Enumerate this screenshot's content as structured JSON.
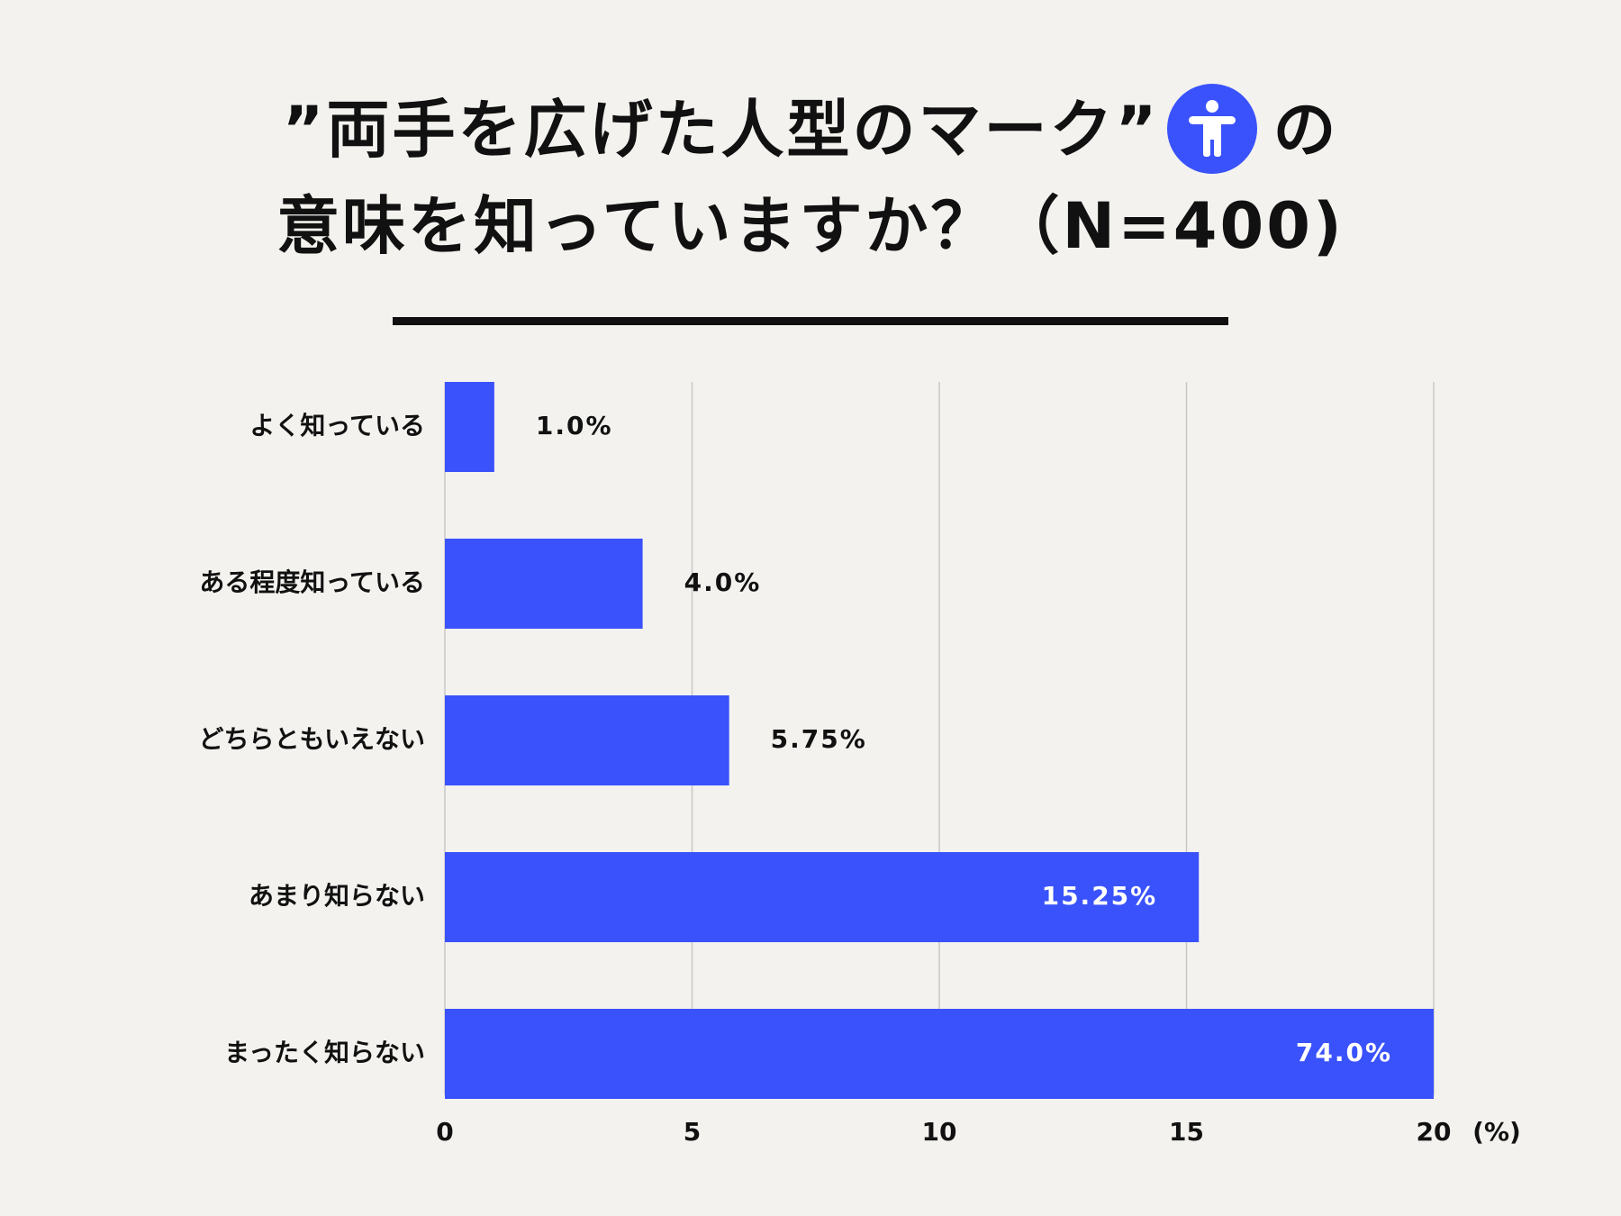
{
  "colors": {
    "background": "#f3f2ee",
    "bar": "#3a52fb",
    "icon_bg": "#3a52fb",
    "text": "#111111",
    "grid": "#c8c8c8"
  },
  "title": {
    "line1_text": "”両手を広げた人型のマーク”",
    "icon": "accessibility-person-icon",
    "line1_suffix": "の",
    "line2": "意味を知っていますか？（N=400)"
  },
  "chart_data": {
    "type": "bar",
    "orientation": "horizontal",
    "categories": [
      "よく知っている",
      "ある程度知っている",
      "どちらともいえない",
      "あまり知らない",
      "まったく知らない"
    ],
    "values": [
      1.0,
      4.0,
      5.75,
      15.25,
      74.0
    ],
    "value_labels": [
      "1.0%",
      "4.0%",
      "5.75%",
      "15.25%",
      "74.0%"
    ],
    "xlim": [
      0,
      20
    ],
    "xticks": [
      0,
      5,
      10,
      15,
      20
    ],
    "x_unit": "(%)",
    "grid": true,
    "legend": false
  }
}
